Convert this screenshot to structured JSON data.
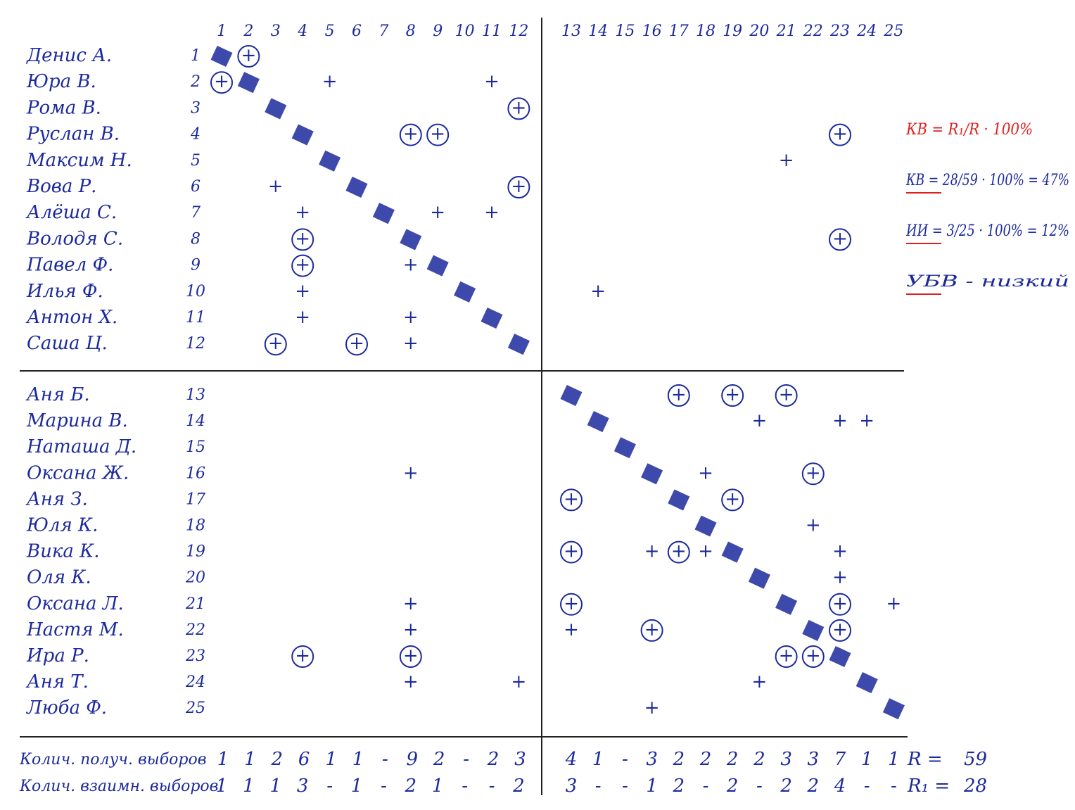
{
  "columns": [
    1,
    2,
    3,
    4,
    5,
    6,
    7,
    8,
    9,
    10,
    11,
    12,
    13,
    14,
    15,
    16,
    17,
    18,
    19,
    20,
    21,
    22,
    23,
    24,
    25
  ],
  "choice_symbol": "+",
  "rows": [
    {
      "name": "Денис А.",
      "number": 1,
      "choices": [
        {
          "to": 2,
          "mutual": true
        }
      ]
    },
    {
      "name": "Юра В.",
      "number": 2,
      "choices": [
        {
          "to": 1,
          "mutual": true
        },
        {
          "to": 5,
          "mutual": false
        },
        {
          "to": 11,
          "mutual": false
        }
      ]
    },
    {
      "name": "Рома В.",
      "number": 3,
      "choices": [
        {
          "to": 12,
          "mutual": true
        }
      ]
    },
    {
      "name": "Руслан В.",
      "number": 4,
      "choices": [
        {
          "to": 8,
          "mutual": true
        },
        {
          "to": 9,
          "mutual": true
        },
        {
          "to": 23,
          "mutual": true
        }
      ]
    },
    {
      "name": "Максим Н.",
      "number": 5,
      "choices": [
        {
          "to": 21,
          "mutual": false
        }
      ]
    },
    {
      "name": "Вова Р.",
      "number": 6,
      "choices": [
        {
          "to": 3,
          "mutual": false
        },
        {
          "to": 12,
          "mutual": true
        }
      ]
    },
    {
      "name": "Алёша С.",
      "number": 7,
      "choices": [
        {
          "to": 4,
          "mutual": false
        },
        {
          "to": 9,
          "mutual": false
        },
        {
          "to": 11,
          "mutual": false
        }
      ]
    },
    {
      "name": "Володя С.",
      "number": 8,
      "choices": [
        {
          "to": 4,
          "mutual": true
        },
        {
          "to": 23,
          "mutual": true
        }
      ]
    },
    {
      "name": "Павел Ф.",
      "number": 9,
      "choices": [
        {
          "to": 4,
          "mutual": true
        },
        {
          "to": 8,
          "mutual": false
        }
      ]
    },
    {
      "name": "Илья Ф.",
      "number": 10,
      "choices": [
        {
          "to": 4,
          "mutual": false
        },
        {
          "to": 14,
          "mutual": false
        }
      ]
    },
    {
      "name": "Антон Х.",
      "number": 11,
      "choices": [
        {
          "to": 4,
          "mutual": false
        },
        {
          "to": 8,
          "mutual": false
        }
      ]
    },
    {
      "name": "Саша Ц.",
      "number": 12,
      "choices": [
        {
          "to": 3,
          "mutual": true
        },
        {
          "to": 6,
          "mutual": true
        },
        {
          "to": 8,
          "mutual": false
        }
      ]
    },
    {
      "name": "Аня Б.",
      "number": 13,
      "choices": [
        {
          "to": 17,
          "mutual": true
        },
        {
          "to": 19,
          "mutual": true
        },
        {
          "to": 21,
          "mutual": true
        }
      ]
    },
    {
      "name": "Марина В.",
      "number": 14,
      "choices": [
        {
          "to": 20,
          "mutual": false
        },
        {
          "to": 23,
          "mutual": false
        },
        {
          "to": 24,
          "mutual": false
        }
      ]
    },
    {
      "name": "Наташа Д.",
      "number": 15,
      "choices": []
    },
    {
      "name": "Оксана Ж.",
      "number": 16,
      "choices": [
        {
          "to": 8,
          "mutual": false
        },
        {
          "to": 18,
          "mutual": false
        },
        {
          "to": 22,
          "mutual": true
        }
      ]
    },
    {
      "name": "Аня З.",
      "number": 17,
      "choices": [
        {
          "to": 13,
          "mutual": true
        },
        {
          "to": 19,
          "mutual": true
        }
      ]
    },
    {
      "name": "Юля К.",
      "number": 18,
      "choices": [
        {
          "to": 22,
          "mutual": false
        }
      ]
    },
    {
      "name": "Вика К.",
      "number": 19,
      "choices": [
        {
          "to": 13,
          "mutual": true
        },
        {
          "to": 16,
          "mutual": false
        },
        {
          "to": 17,
          "mutual": true
        },
        {
          "to": 18,
          "mutual": false
        },
        {
          "to": 23,
          "mutual": false
        }
      ]
    },
    {
      "name": "Оля К.",
      "number": 20,
      "choices": [
        {
          "to": 23,
          "mutual": false
        }
      ]
    },
    {
      "name": "Оксана Л.",
      "number": 21,
      "choices": [
        {
          "to": 8,
          "mutual": false
        },
        {
          "to": 13,
          "mutual": true
        },
        {
          "to": 23,
          "mutual": true
        },
        {
          "to": 25,
          "mutual": false
        }
      ]
    },
    {
      "name": "Настя М.",
      "number": 22,
      "choices": [
        {
          "to": 8,
          "mutual": false
        },
        {
          "to": 13,
          "mutual": false
        },
        {
          "to": 16,
          "mutual": true
        },
        {
          "to": 23,
          "mutual": true
        }
      ]
    },
    {
      "name": "Ира Р.",
      "number": 23,
      "choices": [
        {
          "to": 4,
          "mutual": true
        },
        {
          "to": 8,
          "mutual": true
        },
        {
          "to": 21,
          "mutual": true
        },
        {
          "to": 22,
          "mutual": true
        }
      ]
    },
    {
      "name": "Аня Т.",
      "number": 24,
      "choices": [
        {
          "to": 8,
          "mutual": false
        },
        {
          "to": 12,
          "mutual": false
        },
        {
          "to": 20,
          "mutual": false
        }
      ]
    },
    {
      "name": "Люба Ф.",
      "number": 25,
      "choices": [
        {
          "to": 16,
          "mutual": false
        }
      ]
    }
  ],
  "footer": {
    "received_label": "Колич. получ. выборов",
    "received": [
      1,
      1,
      2,
      6,
      1,
      1,
      "-",
      9,
      2,
      "-",
      2,
      3,
      4,
      1,
      "-",
      3,
      2,
      2,
      2,
      2,
      3,
      3,
      7,
      1,
      1
    ],
    "mutual_label": "Колич. взаимн. выборов",
    "mutual": [
      1,
      1,
      1,
      3,
      "-",
      1,
      "-",
      2,
      1,
      "-",
      "-",
      2,
      3,
      "-",
      "-",
      1,
      2,
      "-",
      2,
      "-",
      2,
      2,
      4,
      "-",
      "-"
    ],
    "r_label": "R =",
    "r_value": 59,
    "r1_label": "R₁ =",
    "r1_value": 28
  },
  "formulas": [
    "КВ = R₁/R · 100%",
    "КВ = 28/59 · 100% = 47%",
    "ИИ = 3/25 · 100% = 12%",
    "УБВ - низкий"
  ]
}
